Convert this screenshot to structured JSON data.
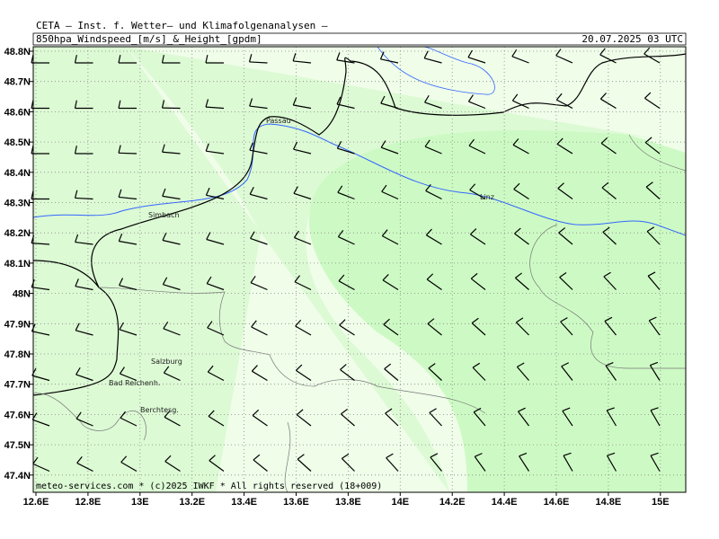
{
  "header": {
    "title": "CETA – Inst. f. Wetter– und Klimafolgenanalysen –",
    "product": "850hpa_Windspeed_[m/s]_&_Height_[gpdm]",
    "time": "20.07.2025 03 UTC"
  },
  "axes": {
    "x_labels": [
      "12.6E",
      "12.8E",
      "13E",
      "13.2E",
      "13.4E",
      "13.6E",
      "13.8E",
      "14E",
      "14.2E",
      "14.4E",
      "14.6E",
      "14.8E",
      "15E"
    ],
    "y_labels": [
      "48.8N",
      "48.7N",
      "48.6N",
      "48.5N",
      "48.4N",
      "48.3N",
      "48.2N",
      "48.1N",
      "48N",
      "47.9N",
      "47.8N",
      "47.7N",
      "47.6N",
      "47.5N",
      "47.4N"
    ]
  },
  "places": [
    "Passau",
    "Simbach",
    "Linz",
    "Salzburg",
    "Bad Reichenh.",
    "Berchtesg."
  ],
  "footer": "meteo-services.com * (c)2025 IWKF * All rights reserved (18+009)"
}
